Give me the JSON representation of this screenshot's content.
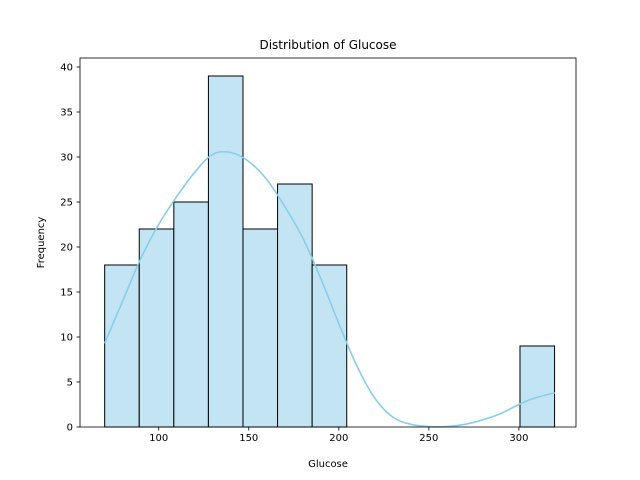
{
  "chart_data": {
    "type": "bar",
    "subtype": "histogram",
    "title": "Distribution of Glucose",
    "xlabel": "Glucose",
    "ylabel": "Frequency",
    "xlim": [
      56.3,
      331.7
    ],
    "ylim": [
      0,
      41
    ],
    "xticks": [
      100,
      150,
      200,
      250,
      300
    ],
    "yticks": [
      0,
      5,
      10,
      15,
      20,
      25,
      30,
      35,
      40
    ],
    "grid": false,
    "bins": [
      {
        "x0": 70.0,
        "x1": 89.2,
        "count": 18
      },
      {
        "x0": 89.2,
        "x1": 108.4,
        "count": 22
      },
      {
        "x0": 108.4,
        "x1": 127.6,
        "count": 25
      },
      {
        "x0": 127.6,
        "x1": 146.8,
        "count": 39
      },
      {
        "x0": 146.8,
        "x1": 166.0,
        "count": 22
      },
      {
        "x0": 166.0,
        "x1": 185.2,
        "count": 27
      },
      {
        "x0": 185.2,
        "x1": 204.4,
        "count": 18
      },
      {
        "x0": 300.6,
        "x1": 319.8,
        "count": 9
      }
    ],
    "kde": {
      "x": [
        70,
        80,
        90,
        100,
        110,
        120,
        130,
        140,
        150,
        160,
        170,
        180,
        190,
        200,
        210,
        220,
        230,
        240,
        250,
        260,
        270,
        280,
        290,
        300,
        310,
        320
      ],
      "y": [
        9.3,
        14.0,
        18.7,
        22.5,
        25.6,
        28.3,
        30.3,
        30.5,
        29.5,
        27.5,
        24.5,
        21.0,
        16.5,
        11.5,
        6.8,
        3.2,
        1.1,
        0.3,
        0.05,
        0.05,
        0.3,
        0.8,
        1.5,
        2.5,
        3.3,
        3.8
      ]
    },
    "colors": {
      "bar_fill": "#c3e4f3",
      "bar_edge": "#000000",
      "kde_line": "#87ceeb"
    }
  }
}
